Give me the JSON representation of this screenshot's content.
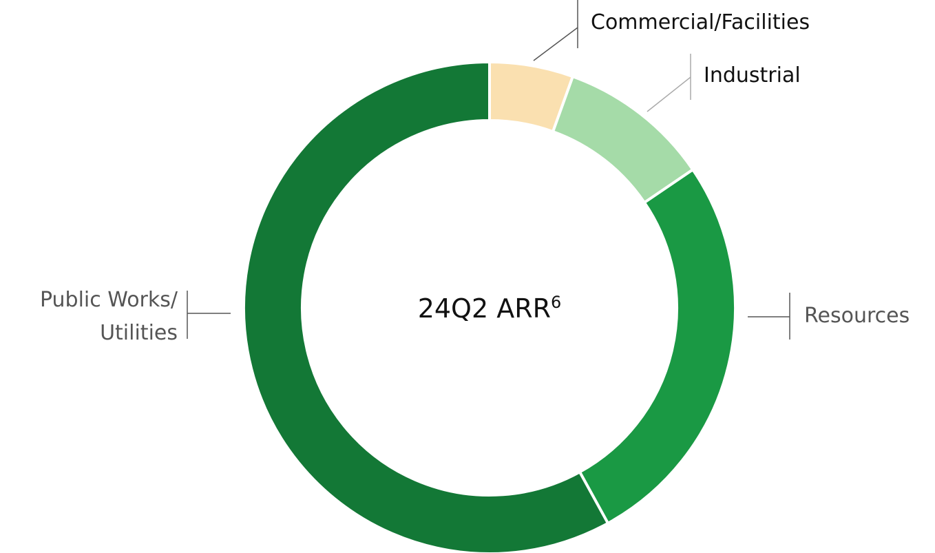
{
  "chart_data": {
    "type": "donut",
    "title": "24Q2 ARR",
    "title_footnote": "6",
    "categories": [
      "Commercial/Facilities",
      "Industrial",
      "Resources",
      "Public Works/\nUtilities"
    ],
    "values": [
      5.5,
      10,
      26.5,
      58
    ],
    "colors": [
      "#fae0b0",
      "#a5dba8",
      "#1a9944",
      "#137836"
    ]
  }
}
